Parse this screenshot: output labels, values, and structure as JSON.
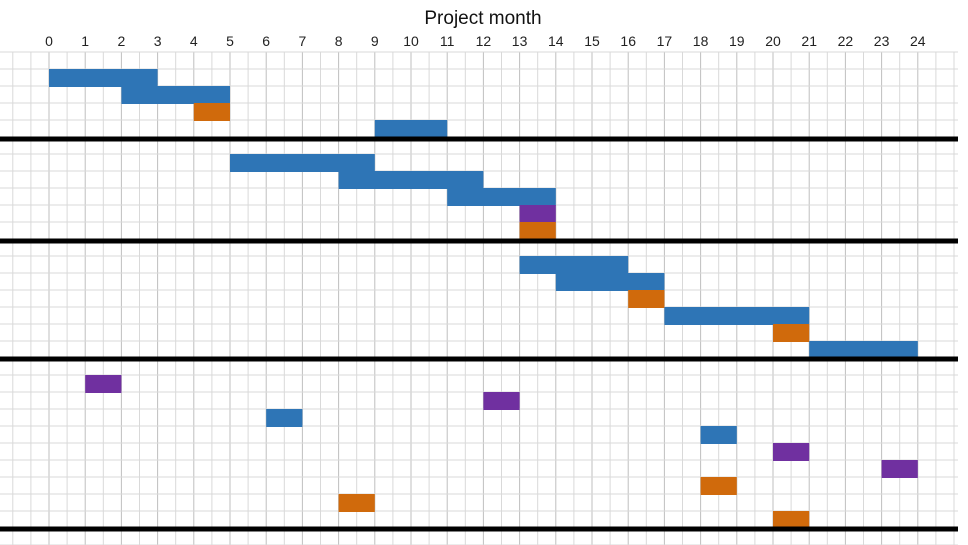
{
  "chart_data": {
    "type": "gantt",
    "title": "Project month",
    "x_axis_position": "top",
    "xlim": [
      0,
      24
    ],
    "x_ticks": [
      "0",
      "1",
      "2",
      "3",
      "4",
      "5",
      "6",
      "7",
      "8",
      "9",
      "10",
      "11",
      "12",
      "13",
      "14",
      "15",
      "16",
      "17",
      "18",
      "19",
      "20",
      "21",
      "22",
      "23",
      "24"
    ],
    "grid": true,
    "colors": {
      "blue": "#2e75b6",
      "orange": "#d06a0c",
      "purple": "#7030a0",
      "divider": "#000000",
      "grid": "#d9d9d9"
    },
    "sections": [
      {
        "rows": 5
      },
      {
        "rows": 5
      },
      {
        "rows": 6
      },
      {
        "rows": 9
      }
    ],
    "tasks": [
      {
        "section": 0,
        "row": 0,
        "start": 0,
        "end": 3,
        "color": "blue"
      },
      {
        "section": 0,
        "row": 1,
        "start": 2,
        "end": 5,
        "color": "blue"
      },
      {
        "section": 0,
        "row": 2,
        "start": 4,
        "end": 5,
        "color": "orange"
      },
      {
        "section": 0,
        "row": 3,
        "start": 9,
        "end": 11,
        "color": "blue"
      },
      {
        "section": 1,
        "row": 0,
        "start": 5,
        "end": 9,
        "color": "blue"
      },
      {
        "section": 1,
        "row": 1,
        "start": 8,
        "end": 12,
        "color": "blue"
      },
      {
        "section": 1,
        "row": 2,
        "start": 11,
        "end": 14,
        "color": "blue"
      },
      {
        "section": 1,
        "row": 3,
        "start": 13,
        "end": 14,
        "color": "purple"
      },
      {
        "section": 1,
        "row": 4,
        "start": 13,
        "end": 14,
        "color": "orange"
      },
      {
        "section": 2,
        "row": 0,
        "start": 13,
        "end": 16,
        "color": "blue"
      },
      {
        "section": 2,
        "row": 1,
        "start": 14,
        "end": 17,
        "color": "blue"
      },
      {
        "section": 2,
        "row": 2,
        "start": 16,
        "end": 17,
        "color": "orange"
      },
      {
        "section": 2,
        "row": 3,
        "start": 17,
        "end": 21,
        "color": "blue"
      },
      {
        "section": 2,
        "row": 4,
        "start": 20,
        "end": 21,
        "color": "orange"
      },
      {
        "section": 2,
        "row": 5,
        "start": 21,
        "end": 24,
        "color": "blue"
      },
      {
        "section": 3,
        "row": 0,
        "start": 1,
        "end": 2,
        "color": "purple"
      },
      {
        "section": 3,
        "row": 1,
        "start": 12,
        "end": 13,
        "color": "purple"
      },
      {
        "section": 3,
        "row": 2,
        "start": 6,
        "end": 7,
        "color": "blue"
      },
      {
        "section": 3,
        "row": 3,
        "start": 18,
        "end": 19,
        "color": "blue"
      },
      {
        "section": 3,
        "row": 4,
        "start": 20,
        "end": 21,
        "color": "purple"
      },
      {
        "section": 3,
        "row": 5,
        "start": 23,
        "end": 24,
        "color": "purple"
      },
      {
        "section": 3,
        "row": 6,
        "start": 18,
        "end": 19,
        "color": "orange"
      },
      {
        "section": 3,
        "row": 7,
        "start": 8,
        "end": 9,
        "color": "orange"
      },
      {
        "section": 3,
        "row": 8,
        "start": 20,
        "end": 21,
        "color": "orange"
      }
    ]
  }
}
